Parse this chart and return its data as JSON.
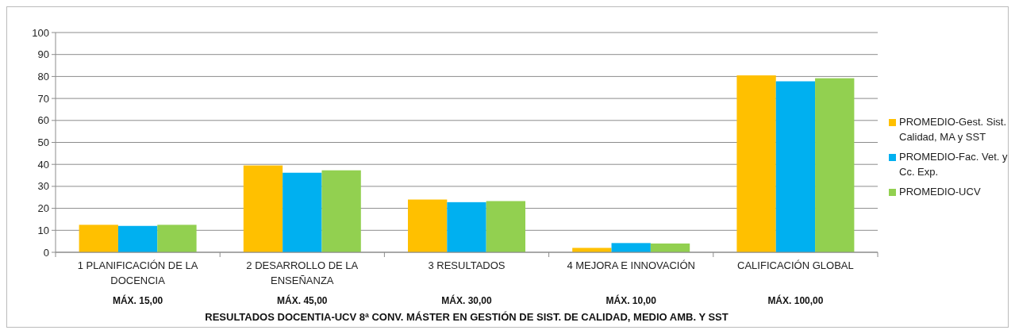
{
  "chart_data": {
    "type": "bar",
    "xlabel": "RESULTADOS DOCENTIA-UCV 8ª CONV. MÁSTER EN GESTIÓN DE SIST. DE CALIDAD, MEDIO AMB. Y SST",
    "categories": [
      "1 PLANIFICACIÓN DE LA DOCENCIA",
      "2 DESARROLLO DE LA ENSEÑANZA",
      "3 RESULTADOS",
      "4 MEJORA E INNOVACIÓN",
      "CALIFICACIÓN GLOBAL"
    ],
    "series": [
      {
        "name": "PROMEDIO-Gest. Sist. Calidad, MA y SST",
        "color": "#ffc000",
        "values": [
          12.5,
          39.5,
          24.0,
          2.0,
          80.5
        ]
      },
      {
        "name": "PROMEDIO-Fac. Vet. y Cc. Exp.",
        "color": "#00b0f0",
        "values": [
          12.0,
          36.2,
          22.8,
          4.2,
          77.8
        ]
      },
      {
        "name": "PROMEDIO-UCV",
        "color": "#92d050",
        "values": [
          12.5,
          37.3,
          23.3,
          4.0,
          79.2
        ]
      }
    ],
    "annotations": [
      "MÁX. 15,00",
      "MÁX. 45,00",
      "MÁX. 30,00",
      "MÁX. 10,00",
      "MÁX. 100,00"
    ],
    "ylim": [
      0,
      100
    ],
    "yticks": [
      0,
      10,
      20,
      30,
      40,
      50,
      60,
      70,
      80,
      90,
      100
    ],
    "grid": "y",
    "legend": "right"
  }
}
